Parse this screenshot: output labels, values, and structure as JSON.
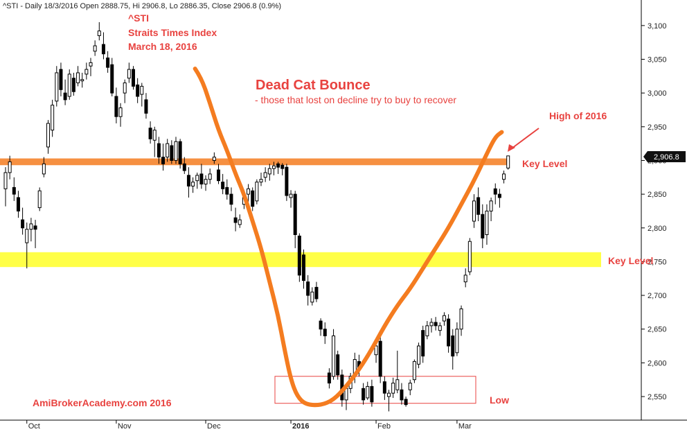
{
  "header": {
    "info": "^STI - Daily 18/3/2016 Open 2888.75, Hi 2906.8, Lo 2886.35, Close 2906.8 (0.9%)"
  },
  "annotations": {
    "symbol": "^STI",
    "name": "Straits Times Index",
    "date": "March 18, 2016",
    "pattern_title": "Dead Cat Bounce",
    "pattern_subtitle": "- those that lost on decline try to buy to recover",
    "high_label": "High of 2016",
    "key_level_upper": "Key Level",
    "key_level_lower": "Key Level",
    "low_label": "Low",
    "watermark": "AmiBrokerAcademy.com  2016",
    "last_price": "2,906.8"
  },
  "colors": {
    "accent_red": "#e8423f",
    "orange": "#f47c20",
    "yellow": "#ffff33",
    "text": "#222222"
  },
  "chart_data": {
    "type": "candlestick",
    "title": "^STI - Daily",
    "ylim": [
      2520,
      3125
    ],
    "y_ticks": [
      {
        "value": 2550,
        "label": "2,550"
      },
      {
        "value": 2600,
        "label": "2,600"
      },
      {
        "value": 2650,
        "label": "2,650"
      },
      {
        "value": 2700,
        "label": "2,700"
      },
      {
        "value": 2750,
        "label": "2,750"
      },
      {
        "value": 2800,
        "label": "2,800"
      },
      {
        "value": 2850,
        "label": "2,850"
      },
      {
        "value": 2900,
        "label": "2,900"
      },
      {
        "value": 2950,
        "label": "2,950"
      },
      {
        "value": 3000,
        "label": "3,000"
      },
      {
        "value": 3050,
        "label": "3,050"
      },
      {
        "value": 3100,
        "label": "3,100"
      }
    ],
    "x_ticks": [
      {
        "index": 5,
        "label": "Oct"
      },
      {
        "index": 26,
        "label": "Nov"
      },
      {
        "index": 47,
        "label": "Dec"
      },
      {
        "index": 67,
        "label": "2016"
      },
      {
        "index": 87,
        "label": "Feb"
      },
      {
        "index": 106,
        "label": "Mar"
      }
    ],
    "key_levels": [
      {
        "low": 2893,
        "high": 2903,
        "color": "#f47c20"
      },
      {
        "low": 2742,
        "high": 2764,
        "color": "#ffff33"
      }
    ],
    "low_zone": {
      "start_index": 65,
      "end_index": 113,
      "low": 2540,
      "high": 2580
    },
    "last_close": 2906.8,
    "candles": [
      {
        "o": 2858,
        "h": 2890,
        "l": 2832,
        "c": 2882
      },
      {
        "o": 2882,
        "h": 2907,
        "l": 2872,
        "c": 2898
      },
      {
        "o": 2860,
        "h": 2875,
        "l": 2840,
        "c": 2850
      },
      {
        "o": 2845,
        "h": 2855,
        "l": 2815,
        "c": 2825
      },
      {
        "o": 2812,
        "h": 2830,
        "l": 2790,
        "c": 2800
      },
      {
        "o": 2778,
        "h": 2808,
        "l": 2740,
        "c": 2798
      },
      {
        "o": 2798,
        "h": 2815,
        "l": 2780,
        "c": 2806
      },
      {
        "o": 2803,
        "h": 2812,
        "l": 2770,
        "c": 2798
      },
      {
        "o": 2830,
        "h": 2860,
        "l": 2825,
        "c": 2855
      },
      {
        "o": 2880,
        "h": 2905,
        "l": 2875,
        "c": 2895
      },
      {
        "o": 2920,
        "h": 2960,
        "l": 2910,
        "c": 2955
      },
      {
        "o": 2945,
        "h": 2990,
        "l": 2935,
        "c": 2982
      },
      {
        "o": 2988,
        "h": 3040,
        "l": 2980,
        "c": 3030
      },
      {
        "o": 3035,
        "h": 3045,
        "l": 2995,
        "c": 3005
      },
      {
        "o": 3000,
        "h": 3020,
        "l": 2982,
        "c": 2990
      },
      {
        "o": 2995,
        "h": 3035,
        "l": 2990,
        "c": 3028
      },
      {
        "o": 3022,
        "h": 3030,
        "l": 2996,
        "c": 3002
      },
      {
        "o": 3015,
        "h": 3040,
        "l": 3010,
        "c": 3030
      },
      {
        "o": 3018,
        "h": 3030,
        "l": 3008,
        "c": 3020
      },
      {
        "o": 3028,
        "h": 3045,
        "l": 3020,
        "c": 3035
      },
      {
        "o": 3040,
        "h": 3052,
        "l": 3025,
        "c": 3045
      },
      {
        "o": 3062,
        "h": 3078,
        "l": 3055,
        "c": 3070
      },
      {
        "o": 3085,
        "h": 3105,
        "l": 3078,
        "c": 3092
      },
      {
        "o": 3072,
        "h": 3090,
        "l": 3050,
        "c": 3058
      },
      {
        "o": 3052,
        "h": 3062,
        "l": 3030,
        "c": 3038
      },
      {
        "o": 3042,
        "h": 3052,
        "l": 2995,
        "c": 3000
      },
      {
        "o": 2995,
        "h": 3008,
        "l": 2955,
        "c": 2965
      },
      {
        "o": 2965,
        "h": 2985,
        "l": 2950,
        "c": 2978
      },
      {
        "o": 3000,
        "h": 3020,
        "l": 2985,
        "c": 3015
      },
      {
        "o": 3022,
        "h": 3045,
        "l": 3015,
        "c": 3035
      },
      {
        "o": 3035,
        "h": 3040,
        "l": 3005,
        "c": 3010
      },
      {
        "o": 3012,
        "h": 3022,
        "l": 2985,
        "c": 2995
      },
      {
        "o": 2998,
        "h": 3015,
        "l": 2980,
        "c": 3010
      },
      {
        "o": 2990,
        "h": 3000,
        "l": 2962,
        "c": 2970
      },
      {
        "o": 2948,
        "h": 2958,
        "l": 2925,
        "c": 2932
      },
      {
        "o": 2930,
        "h": 2950,
        "l": 2905,
        "c": 2945
      },
      {
        "o": 2925,
        "h": 2935,
        "l": 2895,
        "c": 2905
      },
      {
        "o": 2905,
        "h": 2925,
        "l": 2885,
        "c": 2895
      },
      {
        "o": 2905,
        "h": 2932,
        "l": 2898,
        "c": 2925
      },
      {
        "o": 2922,
        "h": 2930,
        "l": 2895,
        "c": 2900
      },
      {
        "o": 2900,
        "h": 2935,
        "l": 2895,
        "c": 2928
      },
      {
        "o": 2928,
        "h": 2932,
        "l": 2888,
        "c": 2895
      },
      {
        "o": 2895,
        "h": 2905,
        "l": 2880,
        "c": 2885
      },
      {
        "o": 2878,
        "h": 2890,
        "l": 2845,
        "c": 2862
      },
      {
        "o": 2862,
        "h": 2875,
        "l": 2852,
        "c": 2868
      },
      {
        "o": 2870,
        "h": 2882,
        "l": 2858,
        "c": 2878
      },
      {
        "o": 2880,
        "h": 2895,
        "l": 2858,
        "c": 2865
      },
      {
        "o": 2865,
        "h": 2878,
        "l": 2855,
        "c": 2872
      },
      {
        "o": 2872,
        "h": 2888,
        "l": 2865,
        "c": 2880
      },
      {
        "o": 2900,
        "h": 2912,
        "l": 2895,
        "c": 2905
      },
      {
        "o": 2886,
        "h": 2895,
        "l": 2865,
        "c": 2870
      },
      {
        "o": 2868,
        "h": 2880,
        "l": 2850,
        "c": 2858
      },
      {
        "o": 2860,
        "h": 2872,
        "l": 2842,
        "c": 2850
      },
      {
        "o": 2850,
        "h": 2860,
        "l": 2825,
        "c": 2835
      },
      {
        "o": 2815,
        "h": 2830,
        "l": 2795,
        "c": 2808
      },
      {
        "o": 2805,
        "h": 2820,
        "l": 2800,
        "c": 2812
      },
      {
        "o": 2835,
        "h": 2852,
        "l": 2828,
        "c": 2845
      },
      {
        "o": 2850,
        "h": 2865,
        "l": 2838,
        "c": 2858
      },
      {
        "o": 2855,
        "h": 2860,
        "l": 2825,
        "c": 2832
      },
      {
        "o": 2840,
        "h": 2872,
        "l": 2835,
        "c": 2868
      },
      {
        "o": 2868,
        "h": 2882,
        "l": 2862,
        "c": 2872
      },
      {
        "o": 2875,
        "h": 2890,
        "l": 2868,
        "c": 2882
      },
      {
        "o": 2880,
        "h": 2895,
        "l": 2870,
        "c": 2888
      },
      {
        "o": 2888,
        "h": 2898,
        "l": 2878,
        "c": 2892
      },
      {
        "o": 2895,
        "h": 2898,
        "l": 2880,
        "c": 2890
      },
      {
        "o": 2893,
        "h": 2896,
        "l": 2878,
        "c": 2888
      },
      {
        "o": 2890,
        "h": 2895,
        "l": 2840,
        "c": 2848
      },
      {
        "o": 2845,
        "h": 2856,
        "l": 2830,
        "c": 2850
      },
      {
        "o": 2850,
        "h": 2855,
        "l": 2770,
        "c": 2790
      },
      {
        "o": 2788,
        "h": 2792,
        "l": 2720,
        "c": 2730
      },
      {
        "o": 2760,
        "h": 2768,
        "l": 2710,
        "c": 2722
      },
      {
        "o": 2720,
        "h": 2730,
        "l": 2685,
        "c": 2700
      },
      {
        "o": 2690,
        "h": 2712,
        "l": 2685,
        "c": 2705
      },
      {
        "o": 2712,
        "h": 2720,
        "l": 2690,
        "c": 2695
      },
      {
        "o": 2662,
        "h": 2666,
        "l": 2640,
        "c": 2650
      },
      {
        "o": 2650,
        "h": 2660,
        "l": 2628,
        "c": 2640
      },
      {
        "o": 2585,
        "h": 2592,
        "l": 2562,
        "c": 2570
      },
      {
        "o": 2580,
        "h": 2650,
        "l": 2575,
        "c": 2640
      },
      {
        "o": 2612,
        "h": 2618,
        "l": 2575,
        "c": 2582
      },
      {
        "o": 2582,
        "h": 2590,
        "l": 2535,
        "c": 2545
      },
      {
        "o": 2545,
        "h": 2570,
        "l": 2530,
        "c": 2562
      },
      {
        "o": 2562,
        "h": 2585,
        "l": 2555,
        "c": 2580
      },
      {
        "o": 2580,
        "h": 2615,
        "l": 2570,
        "c": 2605
      },
      {
        "o": 2602,
        "h": 2612,
        "l": 2580,
        "c": 2592
      },
      {
        "o": 2562,
        "h": 2570,
        "l": 2538,
        "c": 2545
      },
      {
        "o": 2548,
        "h": 2572,
        "l": 2545,
        "c": 2565
      },
      {
        "o": 2565,
        "h": 2575,
        "l": 2535,
        "c": 2542
      },
      {
        "o": 2612,
        "h": 2630,
        "l": 2600,
        "c": 2625
      },
      {
        "o": 2632,
        "h": 2640,
        "l": 2570,
        "c": 2580
      },
      {
        "o": 2572,
        "h": 2580,
        "l": 2545,
        "c": 2555
      },
      {
        "o": 2550,
        "h": 2560,
        "l": 2528,
        "c": 2555
      },
      {
        "o": 2555,
        "h": 2578,
        "l": 2548,
        "c": 2570
      },
      {
        "o": 2560,
        "h": 2618,
        "l": 2555,
        "c": 2575
      },
      {
        "o": 2560,
        "h": 2570,
        "l": 2538,
        "c": 2545
      },
      {
        "o": 2546,
        "h": 2550,
        "l": 2535,
        "c": 2538
      },
      {
        "o": 2560,
        "h": 2575,
        "l": 2552,
        "c": 2570
      },
      {
        "o": 2575,
        "h": 2605,
        "l": 2570,
        "c": 2602
      },
      {
        "o": 2598,
        "h": 2630,
        "l": 2592,
        "c": 2625
      },
      {
        "o": 2648,
        "h": 2655,
        "l": 2600,
        "c": 2610
      },
      {
        "o": 2640,
        "h": 2662,
        "l": 2635,
        "c": 2655
      },
      {
        "o": 2655,
        "h": 2666,
        "l": 2645,
        "c": 2660
      },
      {
        "o": 2660,
        "h": 2668,
        "l": 2648,
        "c": 2655
      },
      {
        "o": 2648,
        "h": 2660,
        "l": 2640,
        "c": 2655
      },
      {
        "o": 2662,
        "h": 2675,
        "l": 2655,
        "c": 2670
      },
      {
        "o": 2665,
        "h": 2672,
        "l": 2615,
        "c": 2625
      },
      {
        "o": 2640,
        "h": 2650,
        "l": 2590,
        "c": 2610
      },
      {
        "o": 2615,
        "h": 2660,
        "l": 2610,
        "c": 2650
      },
      {
        "o": 2650,
        "h": 2685,
        "l": 2640,
        "c": 2680
      },
      {
        "o": 2720,
        "h": 2740,
        "l": 2712,
        "c": 2730
      },
      {
        "o": 2735,
        "h": 2785,
        "l": 2730,
        "c": 2780
      },
      {
        "o": 2810,
        "h": 2850,
        "l": 2800,
        "c": 2840
      },
      {
        "o": 2845,
        "h": 2860,
        "l": 2810,
        "c": 2820
      },
      {
        "o": 2820,
        "h": 2835,
        "l": 2770,
        "c": 2785
      },
      {
        "o": 2790,
        "h": 2835,
        "l": 2775,
        "c": 2825
      },
      {
        "o": 2825,
        "h": 2845,
        "l": 2810,
        "c": 2840
      },
      {
        "o": 2858,
        "h": 2866,
        "l": 2835,
        "c": 2850
      },
      {
        "o": 2850,
        "h": 2858,
        "l": 2830,
        "c": 2845
      },
      {
        "o": 2872,
        "h": 2885,
        "l": 2866,
        "c": 2880
      },
      {
        "o": 2888.75,
        "h": 2906.8,
        "l": 2886.35,
        "c": 2906.8
      }
    ],
    "trend_curve": [
      {
        "i": 44.5,
        "v": 3036
      },
      {
        "i": 46,
        "v": 3022
      },
      {
        "i": 48,
        "v": 2985
      },
      {
        "i": 50,
        "v": 2945
      },
      {
        "i": 52,
        "v": 2915
      },
      {
        "i": 54,
        "v": 2880
      },
      {
        "i": 56,
        "v": 2850
      },
      {
        "i": 58,
        "v": 2810
      },
      {
        "i": 60,
        "v": 2770
      },
      {
        "i": 62,
        "v": 2720
      },
      {
        "i": 64,
        "v": 2670
      },
      {
        "i": 65.5,
        "v": 2620
      },
      {
        "i": 67,
        "v": 2575
      },
      {
        "i": 68.5,
        "v": 2550
      },
      {
        "i": 70.5,
        "v": 2538
      },
      {
        "i": 74,
        "v": 2537
      },
      {
        "i": 77,
        "v": 2545
      },
      {
        "i": 80,
        "v": 2565
      },
      {
        "i": 83,
        "v": 2590
      },
      {
        "i": 86,
        "v": 2620
      },
      {
        "i": 89,
        "v": 2655
      },
      {
        "i": 92,
        "v": 2685
      },
      {
        "i": 95,
        "v": 2710
      },
      {
        "i": 98,
        "v": 2740
      },
      {
        "i": 101,
        "v": 2770
      },
      {
        "i": 104,
        "v": 2800
      },
      {
        "i": 107,
        "v": 2835
      },
      {
        "i": 110,
        "v": 2870
      },
      {
        "i": 113,
        "v": 2910
      },
      {
        "i": 115,
        "v": 2935
      },
      {
        "i": 116.5,
        "v": 2942
      }
    ]
  }
}
